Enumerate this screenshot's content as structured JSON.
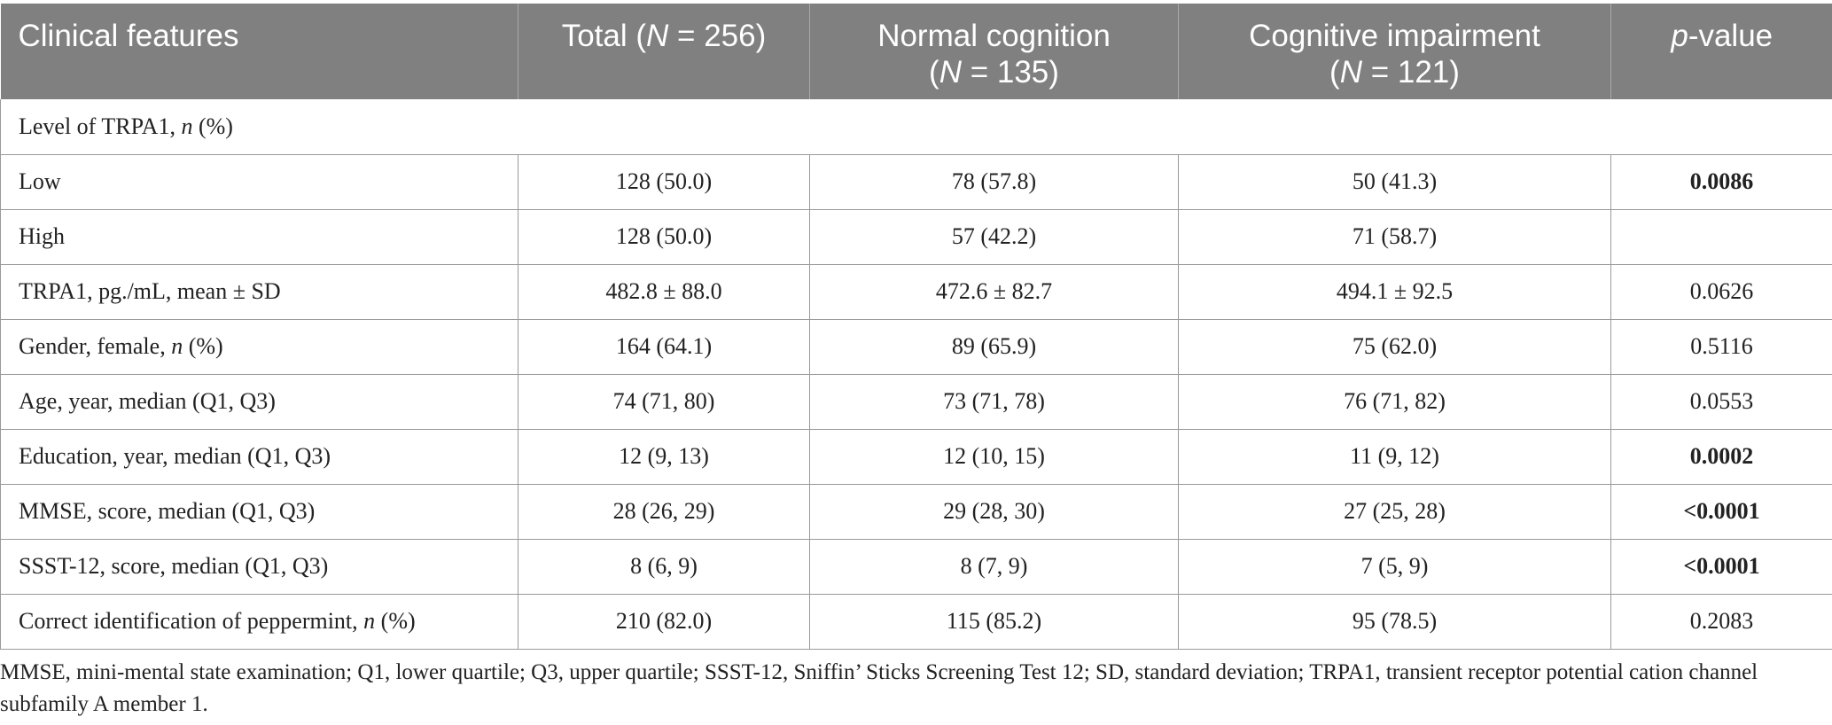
{
  "table": {
    "header": {
      "col0": "Clinical features",
      "col1_pre": "Total (",
      "col1_n": "N",
      "col1_post": " = 256)",
      "col2_line1": "Normal cognition",
      "col2_pre": "(",
      "col2_n": "N",
      "col2_post": " = 135)",
      "col3_line1": "Cognitive impairment",
      "col3_pre": "(",
      "col3_n": "N",
      "col3_post": " = 121)",
      "col4_p": "p",
      "col4_post": "-value"
    },
    "section": {
      "pre": "Level of TRPA1, ",
      "n": "n",
      "post": " (%)"
    },
    "rows": [
      {
        "label": "Low",
        "total": "128 (50.0)",
        "normal": "78 (57.8)",
        "impaired": "50 (41.3)",
        "p": "0.0086"
      },
      {
        "label": "High",
        "total": "128 (50.0)",
        "normal": "57 (42.2)",
        "impaired": "71 (58.7)",
        "p": ""
      },
      {
        "label": "TRPA1, pg./mL, mean ± SD",
        "total": "482.8 ± 88.0",
        "normal": "472.6 ± 82.7",
        "impaired": "494.1 ± 92.5",
        "p": "0.0626"
      },
      {
        "label_pre": "Gender, female, ",
        "label_n": "n",
        "label_post": " (%)",
        "total": "164 (64.1)",
        "normal": "89 (65.9)",
        "impaired": "75 (62.0)",
        "p": "0.5116"
      },
      {
        "label": "Age, year, median (Q1, Q3)",
        "total": "74 (71, 80)",
        "normal": "73 (71, 78)",
        "impaired": "76 (71, 82)",
        "p": "0.0553"
      },
      {
        "label": "Education, year, median (Q1, Q3)",
        "total": "12 (9, 13)",
        "normal": "12 (10, 15)",
        "impaired": "11 (9, 12)",
        "p": "0.0002"
      },
      {
        "label": "MMSE, score, median (Q1, Q3)",
        "total": "28 (26, 29)",
        "normal": "29 (28, 30)",
        "impaired": "27 (25, 28)",
        "p": "<0.0001"
      },
      {
        "label": "SSST-12, score, median (Q1, Q3)",
        "total": "8 (6, 9)",
        "normal": "8 (7, 9)",
        "impaired": "7 (5, 9)",
        "p": "<0.0001"
      },
      {
        "label_pre": "Correct identification of peppermint, ",
        "label_n": "n",
        "label_post": " (%)",
        "total": "210 (82.0)",
        "normal": "115 (85.2)",
        "impaired": "95 (78.5)",
        "p": "0.2083"
      }
    ]
  },
  "footnote": "MMSE, mini-mental state examination; Q1, lower quartile; Q3, upper quartile; SSST-12, Sniffin’ Sticks Screening Test 12; SD, standard deviation; TRPA1, transient receptor potential cation channel subfamily A member 1.",
  "colors": {
    "header_bg": "#808080",
    "header_text": "#ffffff",
    "grid": "#9a9a9a",
    "text": "#222222"
  }
}
